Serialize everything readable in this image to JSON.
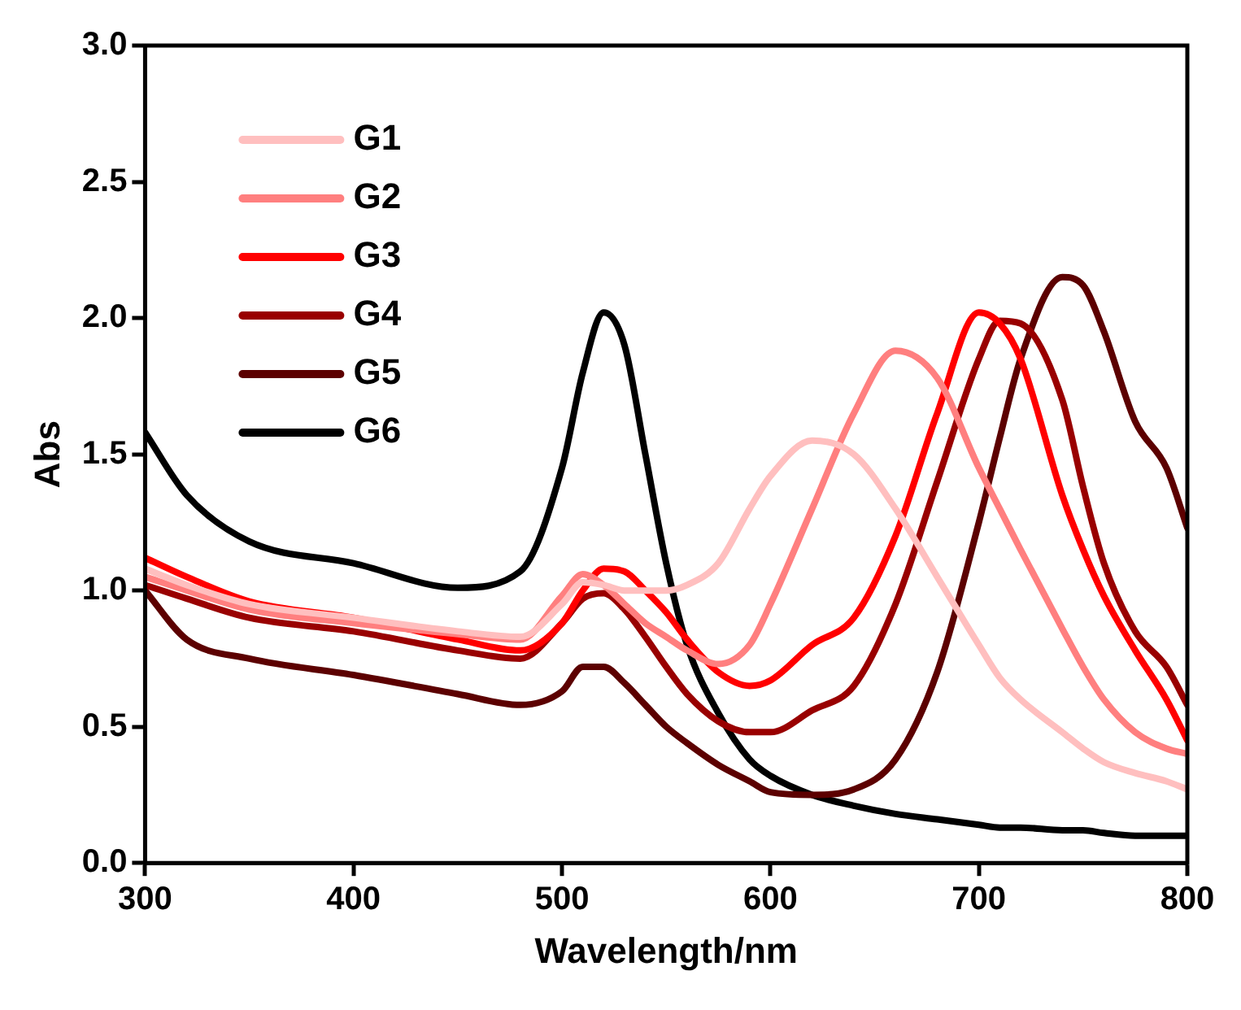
{
  "chart_data": {
    "type": "line",
    "xlabel": "Wavelength/nm",
    "ylabel": "Abs",
    "xlim": [
      300,
      800
    ],
    "xticks": [
      300,
      400,
      500,
      600,
      700,
      800
    ],
    "ylim": [
      0,
      3
    ],
    "yticks": [
      {
        "value": 0,
        "label": "0.0"
      },
      {
        "value": 0.5,
        "label": "0.5"
      },
      {
        "value": 1,
        "label": "1.0"
      },
      {
        "value": 1.5,
        "label": "1.5"
      },
      {
        "value": 2,
        "label": "2.0"
      },
      {
        "value": 2.5,
        "label": "2.5"
      },
      {
        "value": 3,
        "label": "3.0"
      }
    ],
    "grid": false,
    "legend": "top left",
    "marker": "none",
    "line_style": "solid",
    "x": [
      300,
      320,
      350,
      400,
      450,
      480,
      500,
      510,
      520,
      530,
      540,
      550,
      560,
      575,
      590,
      600,
      620,
      640,
      660,
      680,
      700,
      710,
      720,
      740,
      750,
      760,
      775,
      790,
      800
    ],
    "series": [
      {
        "name": "G1",
        "color": "#ffbfbf",
        "values": [
          1.08,
          1.02,
          0.95,
          0.9,
          0.85,
          0.83,
          0.95,
          1.03,
          1.02,
          1.0,
          1.0,
          1.0,
          1.02,
          1.1,
          1.3,
          1.42,
          1.55,
          1.5,
          1.3,
          1.05,
          0.8,
          0.68,
          0.6,
          0.48,
          0.42,
          0.37,
          0.33,
          0.3,
          0.27
        ]
      },
      {
        "name": "G2",
        "color": "#ff7f7f",
        "values": [
          1.05,
          1.0,
          0.93,
          0.88,
          0.84,
          0.82,
          0.98,
          1.06,
          1.02,
          0.95,
          0.88,
          0.83,
          0.78,
          0.73,
          0.8,
          0.95,
          1.3,
          1.65,
          1.88,
          1.78,
          1.45,
          1.3,
          1.15,
          0.86,
          0.72,
          0.6,
          0.48,
          0.42,
          0.4
        ]
      },
      {
        "name": "G3",
        "color": "#ff0000",
        "values": [
          1.12,
          1.05,
          0.96,
          0.9,
          0.82,
          0.78,
          0.88,
          1.0,
          1.08,
          1.07,
          1.0,
          0.92,
          0.82,
          0.7,
          0.65,
          0.67,
          0.8,
          0.9,
          1.2,
          1.65,
          2.02,
          1.98,
          1.85,
          1.35,
          1.15,
          0.98,
          0.78,
          0.6,
          0.45
        ]
      },
      {
        "name": "G4",
        "color": "#990000",
        "values": [
          1.02,
          0.97,
          0.9,
          0.85,
          0.78,
          0.75,
          0.88,
          0.97,
          0.99,
          0.93,
          0.83,
          0.72,
          0.62,
          0.52,
          0.48,
          0.48,
          0.56,
          0.65,
          0.95,
          1.4,
          1.85,
          1.99,
          1.98,
          1.7,
          1.38,
          1.1,
          0.85,
          0.72,
          0.58
        ]
      },
      {
        "name": "G5",
        "color": "#5c0000",
        "values": [
          1.0,
          0.82,
          0.75,
          0.69,
          0.62,
          0.58,
          0.63,
          0.72,
          0.72,
          0.66,
          0.58,
          0.5,
          0.44,
          0.36,
          0.3,
          0.26,
          0.25,
          0.27,
          0.38,
          0.7,
          1.25,
          1.56,
          1.85,
          2.15,
          2.12,
          1.95,
          1.62,
          1.45,
          1.23
        ]
      },
      {
        "name": "G6",
        "color": "#000000",
        "values": [
          1.58,
          1.35,
          1.18,
          1.1,
          1.01,
          1.07,
          1.45,
          1.8,
          2.02,
          1.9,
          1.5,
          1.1,
          0.8,
          0.55,
          0.38,
          0.32,
          0.25,
          0.21,
          0.18,
          0.16,
          0.14,
          0.13,
          0.13,
          0.12,
          0.12,
          0.11,
          0.1,
          0.1,
          0.1
        ]
      }
    ]
  }
}
